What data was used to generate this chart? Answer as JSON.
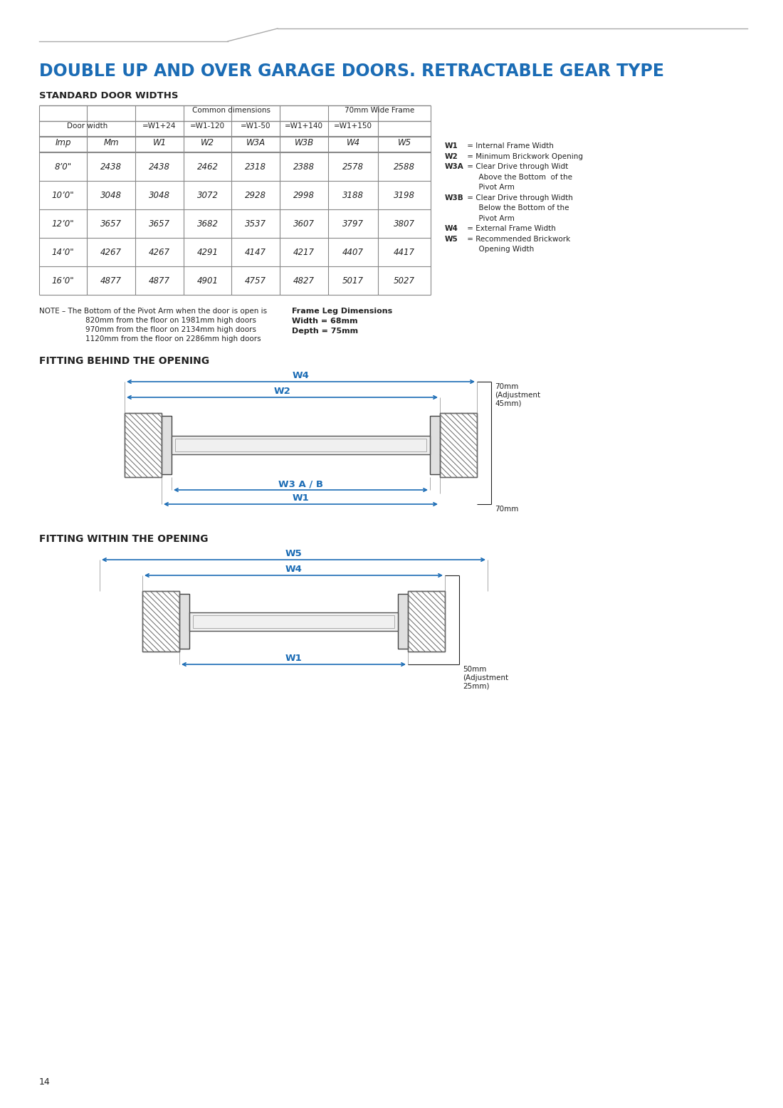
{
  "title": "DOUBLE UP AND OVER GARAGE DOORS. RETRACTABLE GEAR TYPE",
  "title_color": "#1b6cb5",
  "bg_color": "#ffffff",
  "section1_title": "STANDARD DOOR WIDTHS",
  "table_data": [
    [
      "8’0\"",
      "2438",
      "2438",
      "2462",
      "2318",
      "2388",
      "2578",
      "2588"
    ],
    [
      "10’0\"",
      "3048",
      "3048",
      "3072",
      "2928",
      "2998",
      "3188",
      "3198"
    ],
    [
      "12’0\"",
      "3657",
      "3657",
      "3682",
      "3537",
      "3607",
      "3797",
      "3807"
    ],
    [
      "14’0\"",
      "4267",
      "4267",
      "4291",
      "4147",
      "4217",
      "4407",
      "4417"
    ],
    [
      "16’0\"",
      "4877",
      "4877",
      "4901",
      "4757",
      "4827",
      "5017",
      "5027"
    ]
  ],
  "legend_items": [
    [
      "W1",
      " = Internal Frame Width",
      false
    ],
    [
      "W2",
      " = Minimum Brickwork Opening",
      false
    ],
    [
      "W3A",
      " = Clear Drive through Widt",
      false
    ],
    [
      "",
      "   Above the Bottom  of the",
      false
    ],
    [
      "",
      "   Pivot Arm",
      false
    ],
    [
      "W3B",
      " = Clear Drive through Width",
      false
    ],
    [
      "",
      "   Below the Bottom of the",
      false
    ],
    [
      "",
      "   Pivot Arm",
      false
    ],
    [
      "W4",
      " = External Frame Width",
      false
    ],
    [
      "W5",
      " = Recommended Brickwork",
      false
    ],
    [
      "",
      "   Opening Width",
      false
    ]
  ],
  "note_line1": "NOTE – The Bottom of the Pivot Arm when the door is open is",
  "note_lines": [
    "820mm from the floor on 1981mm high doors",
    "970mm from the floor on 2134mm high doors",
    "1120mm from the floor on 2286mm high doors"
  ],
  "frame_leg_title": "Frame Leg Dimensions",
  "frame_leg_lines": [
    "Width = 68mm",
    "Depth = 75mm"
  ],
  "section2_title": "FITTING BEHIND THE OPENING",
  "section3_title": "FITTING WITHIN THE OPENING",
  "blue": "#1b6cb5",
  "dark": "#222222",
  "gray": "#888888",
  "lgray": "#aaaaaa",
  "dim_70mm_top": "70mm\n(Adjustment\n45mm)",
  "dim_70mm_bottom": "70mm",
  "dim_50mm": "50mm\n(Adjustment\n25mm)"
}
